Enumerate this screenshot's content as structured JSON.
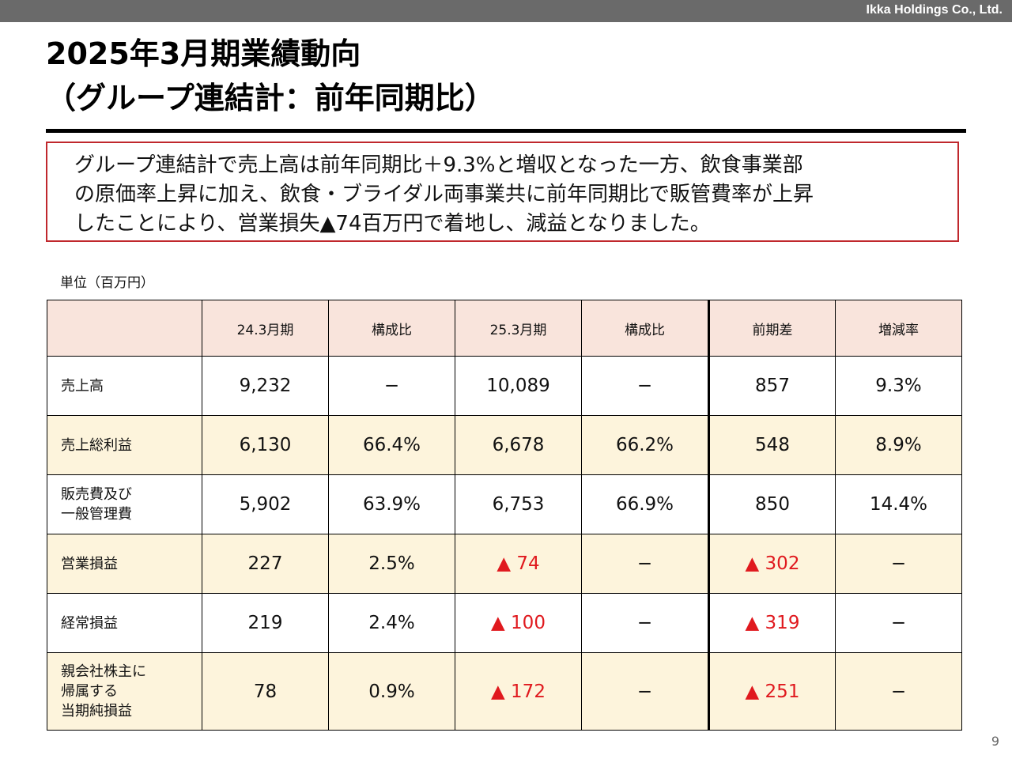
{
  "header": {
    "company": "Ikka Holdings Co., Ltd."
  },
  "title": {
    "line1": "2025年3月期業績動向",
    "line2": "（グループ連結計：前年同期比）"
  },
  "summary": {
    "lines": [
      "グループ連結計で売上高は前年同期比＋9.3%と増収となった一方、飲食事業部",
      "の原価率上昇に加え、飲食・ブライダル両事業共に前年同期比で販管費率が上昇",
      "したことにより、営業損失▲74百万円で着地し、減益となりました。"
    ]
  },
  "unit": "単位（百万円）",
  "table": {
    "headers": [
      "",
      "24.3月期",
      "構成比",
      "25.3月期",
      "構成比",
      "前期差",
      "増減率"
    ],
    "rows": [
      {
        "label_lines": [
          "売上高"
        ],
        "cells": [
          "9,232",
          "−",
          "10,089",
          "−",
          "857",
          "9.3%"
        ]
      },
      {
        "label_lines": [
          "売上総利益"
        ],
        "cells": [
          "6,130",
          "66.4%",
          "6,678",
          "66.2%",
          "548",
          "8.9%"
        ]
      },
      {
        "label_lines": [
          "販売費及び",
          "一般管理費"
        ],
        "cells": [
          "5,902",
          "63.9%",
          "6,753",
          "66.9%",
          "850",
          "14.4%"
        ]
      },
      {
        "label_lines": [
          "営業損益"
        ],
        "cells": [
          "227",
          "2.5%",
          "▲ 74",
          "−",
          "▲ 302",
          "−"
        ]
      },
      {
        "label_lines": [
          "経常損益"
        ],
        "cells": [
          "219",
          "2.4%",
          "▲ 100",
          "−",
          "▲ 319",
          "−"
        ]
      },
      {
        "label_lines": [
          "親会社株主に",
          "帰属する",
          "当期純損益"
        ],
        "cells": [
          "78",
          "0.9%",
          "▲ 172",
          "−",
          "▲ 251",
          "−"
        ]
      }
    ]
  },
  "page_number": "9",
  "colors": {
    "negative": "#e0191e",
    "summary_border": "#c0282d",
    "header_fill": "#f9e4dc",
    "shaded_row_fill": "#fdf4dc",
    "topbar": "#6a6a6a"
  }
}
